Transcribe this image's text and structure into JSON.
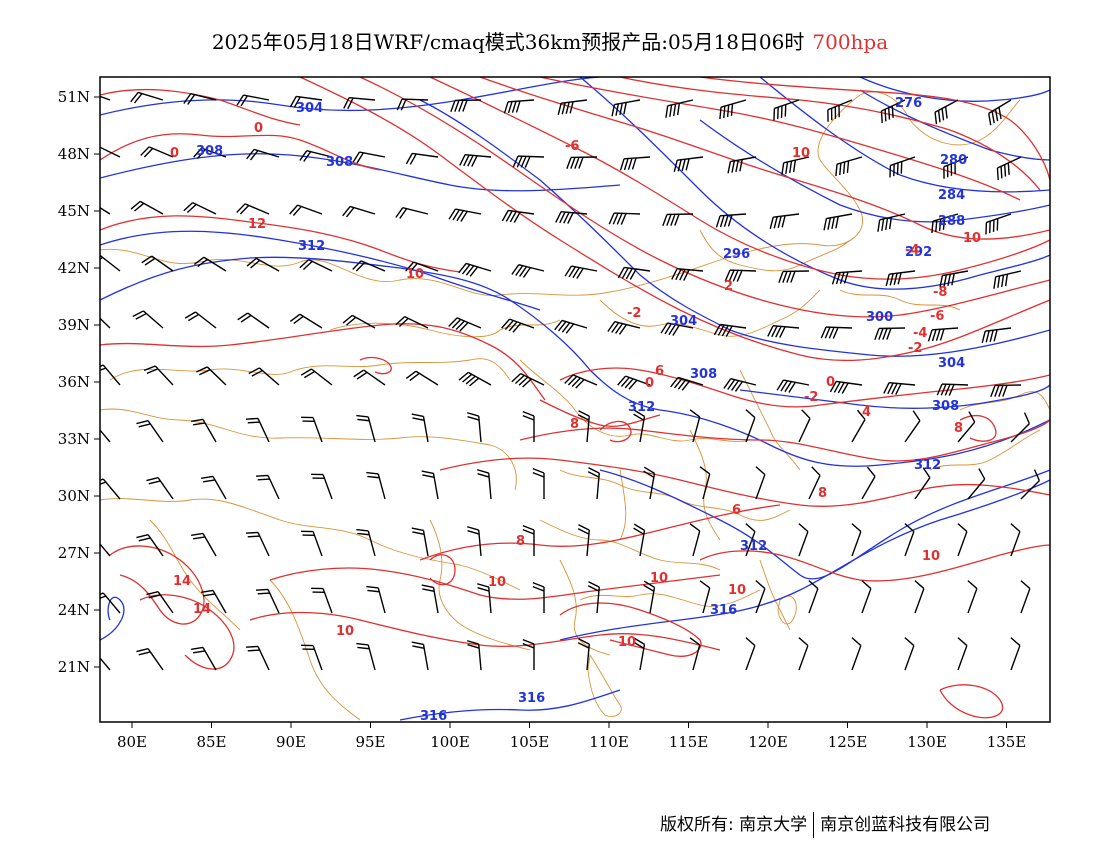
{
  "title": {
    "main": "2025年05月18日WRF/cmaq模式36km预报产品:05月18日06时",
    "level": "700hpa"
  },
  "colors": {
    "height_contour": "#2233dd",
    "temperature_contour": "#e03030",
    "border": "#d9923a",
    "wind_barb": "#000000",
    "level_text": "#e03030"
  },
  "axes": {
    "lon_labels": [
      "80E",
      "85E",
      "90E",
      "95E",
      "100E",
      "105E",
      "110E",
      "115E",
      "120E",
      "125E",
      "130E",
      "135E"
    ],
    "lat_labels": [
      "51N",
      "48N",
      "45N",
      "42N",
      "39N",
      "36N",
      "33N",
      "30N",
      "27N",
      "24N",
      "21N"
    ]
  },
  "height_labels": [
    "304",
    "308",
    "308",
    "312",
    "276",
    "280",
    "284",
    "288",
    "292",
    "296",
    "304",
    "300",
    "304",
    "308",
    "308",
    "312",
    "312",
    "312",
    "316",
    "316",
    "316"
  ],
  "temp_labels": [
    "0",
    "0",
    "12",
    "10",
    "-6",
    "10",
    "-2",
    "2",
    "-4",
    "-8",
    "-6",
    "-4",
    "-2",
    "0",
    "-2",
    "4",
    "8",
    "0",
    "8",
    "6",
    "10",
    "8",
    "10",
    "6",
    "14",
    "14",
    "10",
    "10",
    "10",
    "10",
    "10",
    "8"
  ],
  "footer": {
    "left": "版权所有: 南京大学",
    "right": "南京创蓝科技有限公司"
  }
}
